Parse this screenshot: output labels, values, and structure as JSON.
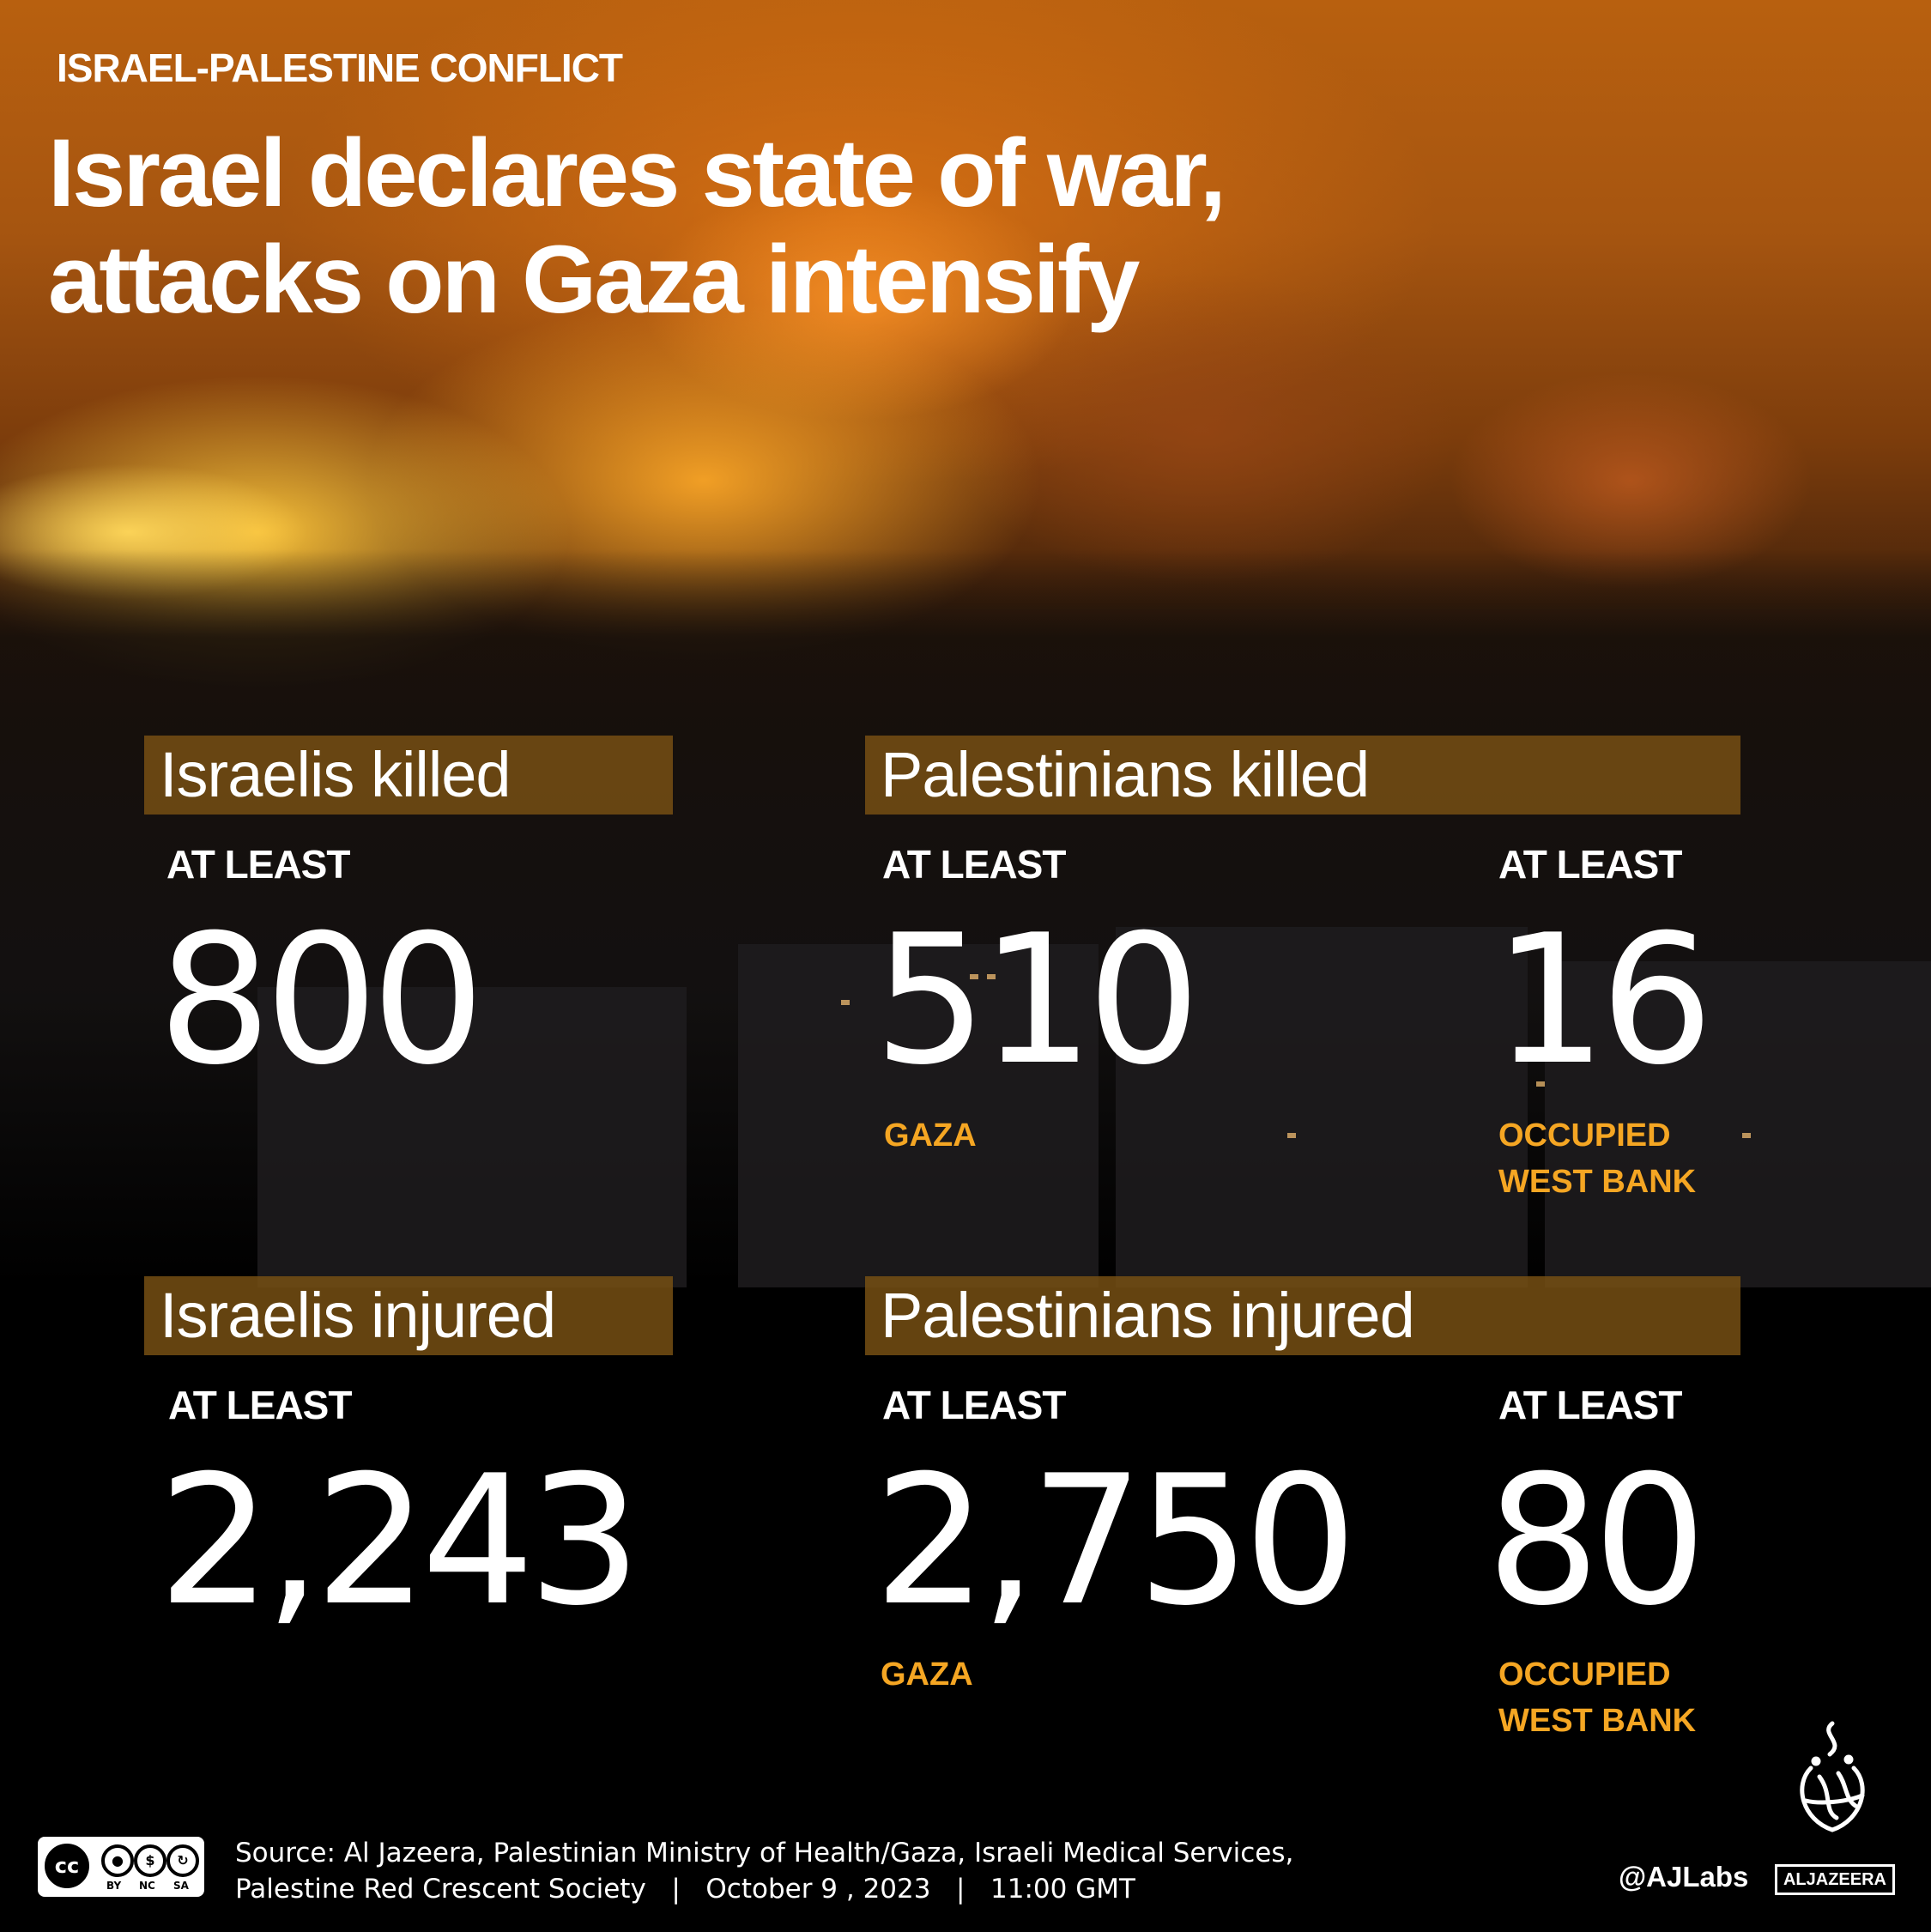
{
  "kicker": "ISRAEL-PALESTINE CONFLICT",
  "headline": {
    "line1": "Israel declares state of war,",
    "line2": "attacks on Gaza intensify"
  },
  "killed": {
    "israelis": {
      "label": "Israelis killed",
      "prefix": "AT LEAST",
      "value": "800"
    },
    "palestinians": {
      "label": "Palestinians killed",
      "gaza": {
        "prefix": "AT LEAST",
        "value": "510",
        "location": "GAZA"
      },
      "west_bank": {
        "prefix": "AT LEAST",
        "value": "16",
        "location_line1": "OCCUPIED",
        "location_line2": "WEST BANK"
      }
    }
  },
  "injured": {
    "israelis": {
      "label": "Israelis injured",
      "prefix": "AT LEAST",
      "value": "2,243"
    },
    "palestinians": {
      "label": "Palestinians injured",
      "gaza": {
        "prefix": "AT LEAST",
        "value": "2,750",
        "location": "GAZA"
      },
      "west_bank": {
        "prefix": "AT LEAST",
        "value": "80",
        "location_line1": "OCCUPIED",
        "location_line2": "WEST BANK"
      }
    }
  },
  "footer": {
    "source_line1": "Source: Al Jazeera, Palestinian Ministry of Health/Gaza, Israeli Medical Services,",
    "source_line2": "Palestine Red Crescent Society   |   October 9 , 2023   |   11:00 GMT",
    "handle": "@AJLabs",
    "brand": "ALJAZEERA",
    "license": {
      "cc": "cc",
      "by": "BY",
      "nc": "NC",
      "sa": "SA"
    }
  },
  "colors": {
    "label_box": "#7a5214",
    "accent": "#f5a623",
    "text": "#ffffff",
    "background": "#000000"
  }
}
